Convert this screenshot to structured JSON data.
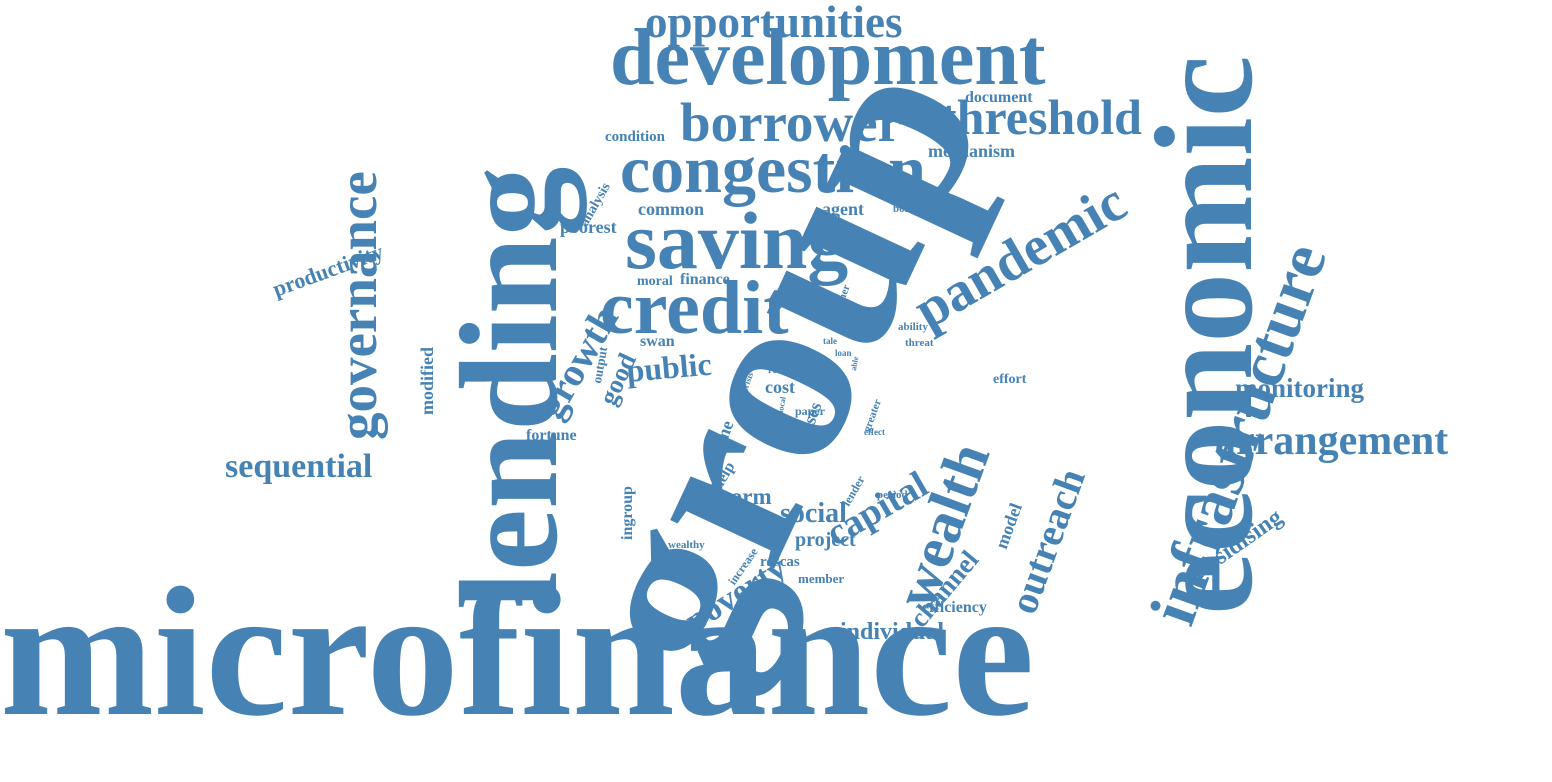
{
  "color": "#4682b4",
  "words": [
    {
      "id": "microfinance",
      "text": "microfinance"
    },
    {
      "id": "group",
      "text": "group"
    },
    {
      "id": "lending",
      "text": "lending"
    },
    {
      "id": "economic",
      "text": "economic"
    },
    {
      "id": "development",
      "text": "development"
    },
    {
      "id": "saving",
      "text": "saving"
    },
    {
      "id": "congestion",
      "text": "congestion"
    },
    {
      "id": "credit",
      "text": "credit"
    },
    {
      "id": "infrastructure",
      "text": "infrastructure"
    },
    {
      "id": "wealth",
      "text": "wealth"
    },
    {
      "id": "governance",
      "text": "governance"
    },
    {
      "id": "pandemic",
      "text": "pandemic"
    },
    {
      "id": "borrower",
      "text": "borrower"
    },
    {
      "id": "threshold",
      "text": "threshold"
    },
    {
      "id": "opportunities",
      "text": "opportunities"
    },
    {
      "id": "arrangement",
      "text": "arrangement"
    },
    {
      "id": "growth",
      "text": "growth"
    },
    {
      "id": "outreach",
      "text": "outreach"
    },
    {
      "id": "capital",
      "text": "capital"
    },
    {
      "id": "poverty",
      "text": "poverty"
    },
    {
      "id": "sequential",
      "text": "sequential"
    },
    {
      "id": "public",
      "text": "public"
    },
    {
      "id": "monitoring",
      "text": "monitoring"
    },
    {
      "id": "channel",
      "text": "channel"
    },
    {
      "id": "social",
      "text": "social"
    },
    {
      "id": "individual",
      "text": "individual"
    },
    {
      "id": "subsidising",
      "text": "subsidising"
    },
    {
      "id": "good",
      "text": "good"
    },
    {
      "id": "productivity",
      "text": "productivity"
    },
    {
      "id": "norm",
      "text": "norm"
    },
    {
      "id": "project",
      "text": "project"
    },
    {
      "id": "poorest",
      "text": "poorest"
    },
    {
      "id": "common",
      "text": "common"
    },
    {
      "id": "agent",
      "text": "agent"
    },
    {
      "id": "mechanism",
      "text": "mechanism"
    },
    {
      "id": "document",
      "text": "document"
    },
    {
      "id": "condition",
      "text": "condition"
    },
    {
      "id": "analysis",
      "text": "analysis"
    },
    {
      "id": "modified",
      "text": "modified"
    },
    {
      "id": "model",
      "text": "model"
    },
    {
      "id": "fortune",
      "text": "fortune"
    },
    {
      "id": "efficiency",
      "text": "efficiency"
    },
    {
      "id": "ingroup",
      "text": "ingroup"
    },
    {
      "id": "roscas",
      "text": "roscas"
    },
    {
      "id": "finance",
      "text": "finance"
    },
    {
      "id": "swan",
      "text": "swan"
    },
    {
      "id": "moral",
      "text": "moral"
    },
    {
      "id": "time",
      "text": "time"
    },
    {
      "id": "help",
      "text": "help"
    },
    {
      "id": "cost",
      "text": "cost"
    },
    {
      "id": "crises",
      "text": "crises"
    },
    {
      "id": "effort",
      "text": "effort"
    },
    {
      "id": "output",
      "text": "output"
    },
    {
      "id": "member",
      "text": "member"
    },
    {
      "id": "increase",
      "text": "increase"
    },
    {
      "id": "wealthy",
      "text": "wealthy"
    },
    {
      "id": "lender",
      "text": "lender"
    },
    {
      "id": "period",
      "text": "period"
    },
    {
      "id": "paper",
      "text": "paper"
    },
    {
      "id": "greater",
      "text": "greater"
    },
    {
      "id": "ability",
      "text": "ability"
    },
    {
      "id": "threat",
      "text": "threat"
    },
    {
      "id": "higher",
      "text": "higher"
    },
    {
      "id": "borrow",
      "text": "borrow"
    },
    {
      "id": "rent",
      "text": "rent"
    },
    {
      "id": "self",
      "text": "self"
    },
    {
      "id": "crisis",
      "text": "crisis"
    },
    {
      "id": "local",
      "text": "local"
    },
    {
      "id": "effect",
      "text": "effect"
    },
    {
      "id": "tale",
      "text": "tale"
    },
    {
      "id": "loan",
      "text": "loan"
    },
    {
      "id": "able",
      "text": "able"
    }
  ]
}
